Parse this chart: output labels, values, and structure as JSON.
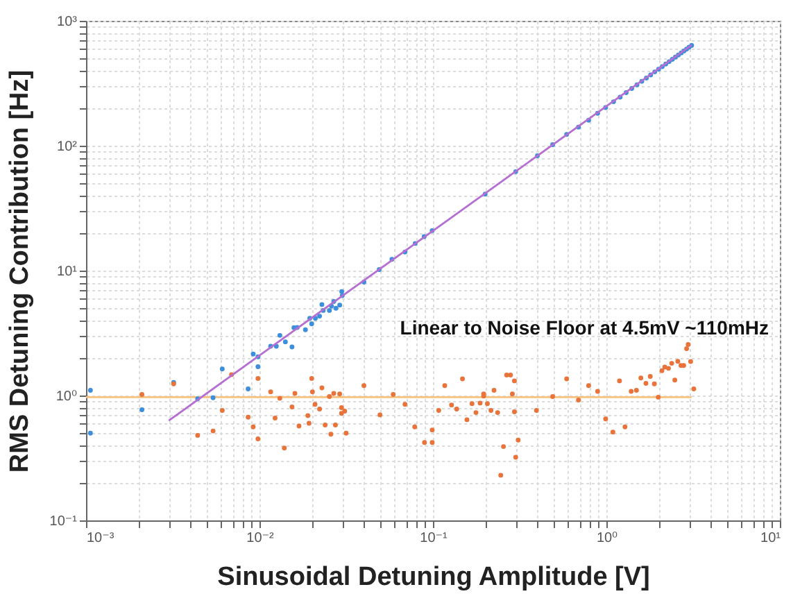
{
  "chart_data": {
    "type": "scatter",
    "xlabel": "Sinusoidal Detuning Amplitude [V]",
    "ylabel": "RMS Detuning Contribution [Hz]",
    "annotations": [
      "Linear to Noise Floor at 4.5mV ~110mHz"
    ],
    "log": "xy",
    "grid": true,
    "marker": "circle",
    "xlim": [
      0.001,
      10
    ],
    "ylim": [
      0.1,
      1000
    ],
    "xticks": [
      {
        "value": 0.001,
        "label": "10⁻³"
      },
      {
        "value": 0.002,
        "label": null
      },
      {
        "value": 0.003,
        "label": null
      },
      {
        "value": 0.004,
        "label": null
      },
      {
        "value": 0.005,
        "label": null
      },
      {
        "value": 0.006,
        "label": null
      },
      {
        "value": 0.007,
        "label": null
      },
      {
        "value": 0.008,
        "label": null
      },
      {
        "value": 0.009,
        "label": null
      },
      {
        "value": 0.01,
        "label": "10⁻²"
      },
      {
        "value": 0.02,
        "label": null
      },
      {
        "value": 0.03,
        "label": null
      },
      {
        "value": 0.04,
        "label": null
      },
      {
        "value": 0.05,
        "label": null
      },
      {
        "value": 0.06,
        "label": null
      },
      {
        "value": 0.07,
        "label": null
      },
      {
        "value": 0.08,
        "label": null
      },
      {
        "value": 0.09,
        "label": null
      },
      {
        "value": 0.1,
        "label": "10⁻¹"
      },
      {
        "value": 0.2,
        "label": null
      },
      {
        "value": 0.3,
        "label": null
      },
      {
        "value": 0.4,
        "label": null
      },
      {
        "value": 0.5,
        "label": null
      },
      {
        "value": 0.6,
        "label": null
      },
      {
        "value": 0.7,
        "label": null
      },
      {
        "value": 0.8,
        "label": null
      },
      {
        "value": 0.9,
        "label": null
      },
      {
        "value": 1,
        "label": "10⁰"
      },
      {
        "value": 2,
        "label": null
      },
      {
        "value": 3,
        "label": null
      },
      {
        "value": 4,
        "label": null
      },
      {
        "value": 5,
        "label": null
      },
      {
        "value": 6,
        "label": null
      },
      {
        "value": 7,
        "label": null
      },
      {
        "value": 8,
        "label": null
      },
      {
        "value": 9,
        "label": null
      },
      {
        "value": 10,
        "label": "10¹"
      }
    ],
    "yticks": [
      {
        "value": 0.1,
        "label": "10⁻¹"
      },
      {
        "value": 0.2,
        "label": null
      },
      {
        "value": 0.3,
        "label": null
      },
      {
        "value": 0.4,
        "label": null
      },
      {
        "value": 0.5,
        "label": null
      },
      {
        "value": 0.6,
        "label": null
      },
      {
        "value": 0.7,
        "label": null
      },
      {
        "value": 0.8,
        "label": null
      },
      {
        "value": 0.9,
        "label": null
      },
      {
        "value": 1,
        "label": "10⁰"
      },
      {
        "value": 2,
        "label": null
      },
      {
        "value": 3,
        "label": null
      },
      {
        "value": 4,
        "label": null
      },
      {
        "value": 5,
        "label": null
      },
      {
        "value": 6,
        "label": null
      },
      {
        "value": 7,
        "label": null
      },
      {
        "value": 8,
        "label": null
      },
      {
        "value": 9,
        "label": null
      },
      {
        "value": 10,
        "label": "10¹"
      },
      {
        "value": 20,
        "label": null
      },
      {
        "value": 30,
        "label": null
      },
      {
        "value": 40,
        "label": null
      },
      {
        "value": 50,
        "label": null
      },
      {
        "value": 60,
        "label": null
      },
      {
        "value": 70,
        "label": null
      },
      {
        "value": 80,
        "label": null
      },
      {
        "value": 90,
        "label": null
      },
      {
        "value": 100,
        "label": "10²"
      },
      {
        "value": 200,
        "label": null
      },
      {
        "value": 300,
        "label": null
      },
      {
        "value": 400,
        "label": null
      },
      {
        "value": 500,
        "label": null
      },
      {
        "value": 600,
        "label": null
      },
      {
        "value": 700,
        "label": null
      },
      {
        "value": 800,
        "label": null
      },
      {
        "value": 900,
        "label": null
      },
      {
        "value": 1000,
        "label": "10³"
      }
    ],
    "series": [
      {
        "type": "line",
        "marker": "none",
        "color": "#f7c27e",
        "x": [
          0.001,
          3.1
        ],
        "values": [
          0.97,
          0.97
        ]
      },
      {
        "color": "#3d8fdb",
        "x": [
          0.00106,
          0.00106,
          0.0021,
          0.0032,
          0.0044,
          0.0054,
          0.0061,
          0.0086,
          0.0092,
          0.0098,
          0.0098,
          0.0116,
          0.0125,
          0.0131,
          0.0141,
          0.0154,
          0.0158,
          0.0165,
          0.0184,
          0.0195,
          0.02,
          0.021,
          0.0222,
          0.0229,
          0.0233,
          0.0253,
          0.026,
          0.0268,
          0.0276,
          0.029,
          0.0298,
          0.03,
          0.04,
          0.049,
          0.058,
          0.069,
          0.079,
          0.089,
          0.099,
          0.2,
          0.3,
          0.4,
          0.49,
          0.59,
          0.69,
          0.79,
          0.89,
          0.99,
          1.1,
          1.2,
          1.3,
          1.4,
          1.5,
          1.6,
          1.7,
          1.8,
          1.9,
          2.0,
          2.1,
          2.2,
          2.3,
          2.4,
          2.5,
          2.6,
          2.7,
          2.8,
          2.9,
          3.0,
          3.1
        ],
        "values": [
          1.1,
          0.5,
          0.77,
          1.27,
          0.94,
          0.96,
          1.63,
          1.13,
          2.15,
          1.7,
          2.04,
          2.48,
          2.48,
          3.03,
          2.69,
          2.45,
          3.49,
          3.5,
          3.36,
          4.15,
          3.75,
          4.15,
          4.32,
          5.35,
          4.8,
          4.8,
          5.2,
          5.66,
          5.0,
          5.3,
          6.8,
          6.3,
          8.1,
          10.2,
          12.3,
          14.1,
          16.5,
          18.7,
          20.9,
          41,
          62,
          83,
          102,
          123,
          141,
          160,
          182,
          202,
          225,
          245,
          266,
          287,
          307,
          328,
          348,
          369,
          390,
          410,
          430,
          451,
          471,
          492,
          512,
          533,
          553,
          574,
          594,
          615,
          635
        ]
      },
      {
        "color": "#e8743b",
        "x": [
          0.0021,
          0.0032,
          0.0044,
          0.0054,
          0.0061,
          0.0069,
          0.0086,
          0.0092,
          0.0098,
          0.0098,
          0.0116,
          0.0123,
          0.0131,
          0.0139,
          0.0154,
          0.016,
          0.0169,
          0.019,
          0.0193,
          0.02,
          0.0202,
          0.0209,
          0.0222,
          0.0229,
          0.0239,
          0.0253,
          0.0258,
          0.0268,
          0.0274,
          0.029,
          0.0297,
          0.0297,
          0.031,
          0.0316,
          0.04,
          0.0495,
          0.059,
          0.069,
          0.0785,
          0.0894,
          0.099,
          0.099,
          0.108,
          0.117,
          0.128,
          0.137,
          0.148,
          0.157,
          0.168,
          0.177,
          0.187,
          0.196,
          0.196,
          0.206,
          0.216,
          0.225,
          0.236,
          0.246,
          0.255,
          0.266,
          0.28,
          0.287,
          0.295,
          0.295,
          0.3,
          0.31,
          0.395,
          0.49,
          0.59,
          0.69,
          0.79,
          0.89,
          0.99,
          1.09,
          1.19,
          1.28,
          1.39,
          1.49,
          1.58,
          1.69,
          1.79,
          1.89,
          1.99,
          2.09,
          2.17,
          2.28,
          2.38,
          2.48,
          2.58,
          2.69,
          2.79,
          2.9,
          2.96,
          3.06,
          3.19
        ],
        "values": [
          1.02,
          1.24,
          0.48,
          0.52,
          0.76,
          1.47,
          0.67,
          0.56,
          1.37,
          0.45,
          1.07,
          0.66,
          0.95,
          0.38,
          0.81,
          1.04,
          0.57,
          0.69,
          0.6,
          1.37,
          1.07,
          0.85,
          0.78,
          1.15,
          0.58,
          0.98,
          0.49,
          1.04,
          0.58,
          1.03,
          0.8,
          0.72,
          0.75,
          0.5,
          1.2,
          0.7,
          1.02,
          0.85,
          0.56,
          0.42,
          0.42,
          0.53,
          0.76,
          1.2,
          0.84,
          0.78,
          1.36,
          0.64,
          0.86,
          0.73,
          0.87,
          1.03,
          0.99,
          0.86,
          0.76,
          1.1,
          0.73,
          0.23,
          0.39,
          1.46,
          1.46,
          1.03,
          1.31,
          0.74,
          0.32,
          0.44,
          0.76,
          0.98,
          1.36,
          0.92,
          1.2,
          1.08,
          0.65,
          0.51,
          1.31,
          0.56,
          1.08,
          1.1,
          1.38,
          1.25,
          1.42,
          1.24,
          0.97,
          1.58,
          1.69,
          1.65,
          1.81,
          1.33,
          1.88,
          1.74,
          1.74,
          2.37,
          2.56,
          1.87,
          1.13
        ]
      },
      {
        "type": "line",
        "marker": "none",
        "color": "#b56fd2",
        "x": [
          0.003,
          3.1
        ],
        "values": [
          0.63,
          640
        ]
      }
    ]
  }
}
